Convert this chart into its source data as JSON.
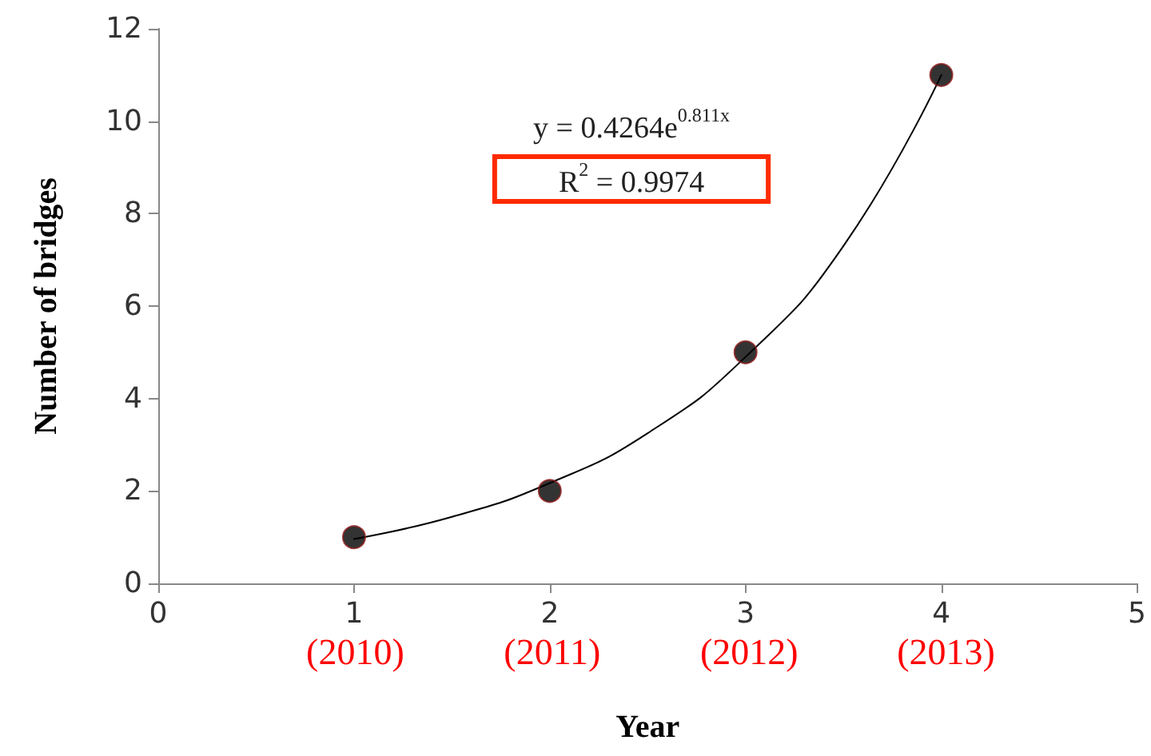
{
  "chart_data": {
    "type": "scatter",
    "xlabel": "Year",
    "ylabel": "Number of bridges",
    "xlim": [
      0,
      5
    ],
    "xticks": [
      0,
      1,
      2,
      3,
      4,
      5
    ],
    "ylim": [
      0,
      12
    ],
    "yticks": [
      0,
      2,
      4,
      6,
      8,
      10,
      12
    ],
    "grid": false,
    "marker": "circle",
    "series": [
      {
        "color": "#000000",
        "x": [
          1,
          2,
          3,
          4
        ],
        "values": [
          1,
          2,
          5,
          11
        ]
      },
      {
        "type": "line",
        "color": "#000000",
        "marker": "none",
        "line_style": "solid",
        "x": [
          1,
          1.5,
          2,
          2.5,
          3,
          3.5,
          4
        ],
        "values": [
          0.96,
          1.44,
          2.17,
          3.25,
          4.9,
          7.3,
          11.0
        ]
      }
    ],
    "annotations": [
      "y = 0.4264e$^{0.811x}$",
      "R$^{2}$ = 0.9974",
      "(2010)",
      "(2011)",
      "(2012)",
      "(2013)"
    ]
  }
}
